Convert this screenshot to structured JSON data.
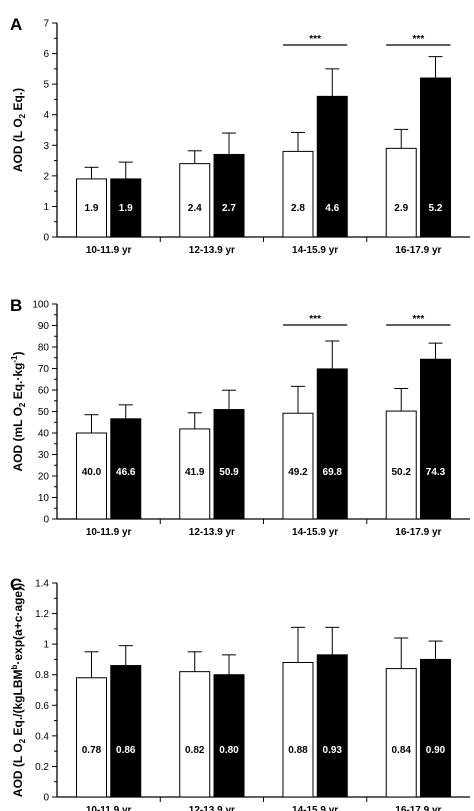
{
  "chart_data": [
    {
      "panel": "A",
      "type": "bar",
      "ylabel_parts": [
        "AOD (L O",
        "2",
        " Eq.)"
      ],
      "ylim": [
        0,
        7
      ],
      "yticks": [
        "0",
        "1",
        "2",
        "3",
        "4",
        "5",
        "6",
        "7"
      ],
      "categories": [
        "10-11.9 yr",
        "12-13.9 yr",
        "14-15.9 yr",
        "16-17.9 yr"
      ],
      "series": [
        {
          "fill": "#ffffff",
          "values": [
            1.9,
            2.4,
            2.8,
            2.9
          ],
          "errors": [
            0.38,
            0.42,
            0.62,
            0.62
          ],
          "labels": [
            "1.9",
            "2.4",
            "2.8",
            "2.9"
          ]
        },
        {
          "fill": "#000000",
          "values": [
            1.9,
            2.7,
            4.6,
            5.2
          ],
          "errors": [
            0.55,
            0.7,
            0.9,
            0.7
          ],
          "labels": [
            "1.9",
            "2.7",
            "4.6",
            "5.2"
          ]
        }
      ],
      "significance": [
        {
          "category_index": 2,
          "text": "***"
        },
        {
          "category_index": 3,
          "text": "***"
        }
      ]
    },
    {
      "panel": "B",
      "type": "bar",
      "ylabel_parts": [
        "AOD (mL O",
        "2",
        " Eq.·kg",
        "-1",
        ")"
      ],
      "ylim": [
        0,
        100
      ],
      "yticks": [
        "0",
        "10",
        "20",
        "30",
        "40",
        "50",
        "60",
        "70",
        "80",
        "90",
        "100"
      ],
      "categories": [
        "10-11.9 yr",
        "12-13.9 yr",
        "14-15.9 yr",
        "16-17.9 yr"
      ],
      "series": [
        {
          "fill": "#ffffff",
          "values": [
            40.0,
            41.9,
            49.2,
            50.2
          ],
          "errors": [
            8.5,
            7.5,
            12.5,
            10.5
          ],
          "labels": [
            "40.0",
            "41.9",
            "49.2",
            "50.2"
          ]
        },
        {
          "fill": "#000000",
          "values": [
            46.6,
            50.9,
            69.8,
            74.3
          ],
          "errors": [
            6.5,
            9.0,
            13.0,
            7.5
          ],
          "labels": [
            "46.6",
            "50.9",
            "69.8",
            "74.3"
          ]
        }
      ],
      "significance": [
        {
          "category_index": 2,
          "text": "***"
        },
        {
          "category_index": 3,
          "text": "***"
        }
      ]
    },
    {
      "panel": "C",
      "type": "bar",
      "ylabel_parts": [
        "AOD (L O",
        "2",
        " Eq./(kgLBM",
        "b",
        "·exp(a+c·age))"
      ],
      "ylim": [
        0,
        1.4
      ],
      "yticks": [
        "0",
        "0.2",
        "0.4",
        "0.6",
        "0.8",
        "1",
        "1.2",
        "1.4"
      ],
      "categories": [
        "10-11.9 yr",
        "12-13.9 yr",
        "14-15.9 yr",
        "16-17.9 yr"
      ],
      "series": [
        {
          "fill": "#ffffff",
          "values": [
            0.78,
            0.82,
            0.88,
            0.84
          ],
          "errors": [
            0.17,
            0.13,
            0.23,
            0.2
          ],
          "labels": [
            "0.78",
            "0.82",
            "0.88",
            "0.84"
          ]
        },
        {
          "fill": "#000000",
          "values": [
            0.86,
            0.8,
            0.93,
            0.9
          ],
          "errors": [
            0.13,
            0.13,
            0.18,
            0.12
          ],
          "labels": [
            "0.86",
            "0.80",
            "0.93",
            "0.90"
          ]
        }
      ],
      "significance": []
    }
  ]
}
